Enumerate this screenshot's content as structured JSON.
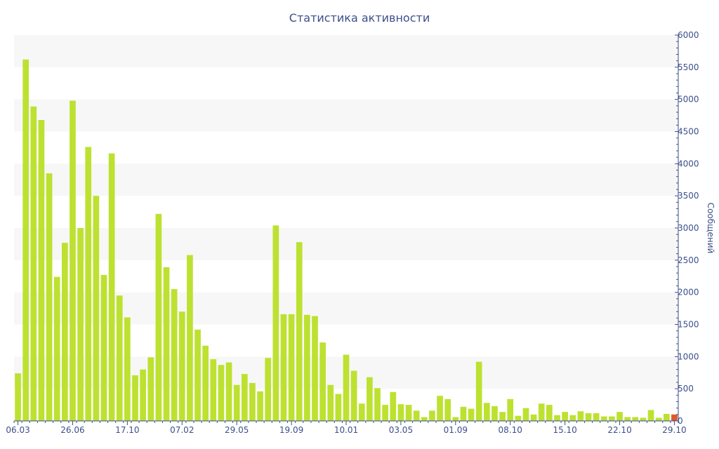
{
  "chart_data": {
    "type": "bar",
    "title": "Статистика активности",
    "ylabel": "Сообщений",
    "xlabel": "",
    "ylim": [
      0,
      6000
    ],
    "y_ticks": [
      0,
      500,
      1000,
      1500,
      2000,
      2500,
      3000,
      3500,
      4000,
      4500,
      5000,
      5500,
      6000
    ],
    "y_axis_side": "right",
    "grid": "alternating horizontal bands",
    "x_tick_labels": [
      {
        "index": 0,
        "label": "06.03"
      },
      {
        "index": 7,
        "label": "26.06"
      },
      {
        "index": 14,
        "label": "17.10"
      },
      {
        "index": 21,
        "label": "07.02"
      },
      {
        "index": 28,
        "label": "29.05"
      },
      {
        "index": 35,
        "label": "19.09"
      },
      {
        "index": 42,
        "label": "10.01"
      },
      {
        "index": 49,
        "label": "03.05"
      },
      {
        "index": 56,
        "label": "01.09"
      },
      {
        "index": 63,
        "label": "08.10"
      },
      {
        "index": 70,
        "label": "15.10"
      },
      {
        "index": 77,
        "label": "22.10"
      },
      {
        "index": 84,
        "label": "29.10"
      }
    ],
    "values": [
      740,
      5620,
      4890,
      4680,
      3850,
      2240,
      2770,
      4980,
      3000,
      4260,
      3500,
      2270,
      4160,
      1950,
      1610,
      710,
      800,
      990,
      3220,
      2390,
      2050,
      1700,
      2580,
      1420,
      1170,
      960,
      870,
      910,
      560,
      730,
      590,
      460,
      980,
      3040,
      1660,
      1660,
      2780,
      1650,
      1630,
      1220,
      560,
      420,
      1030,
      780,
      270,
      680,
      510,
      250,
      450,
      260,
      250,
      160,
      60,
      160,
      390,
      340,
      60,
      220,
      190,
      920,
      280,
      230,
      140,
      340,
      80,
      200,
      100,
      270,
      250,
      90,
      140,
      90,
      150,
      120,
      120,
      70,
      70,
      140,
      60,
      60,
      50,
      170,
      50,
      110,
      100
    ],
    "colors": {
      "bar": "#bde130",
      "last_bar": "#e0592a",
      "band": "#f7f7f7",
      "axis": "#3c4f8a"
    }
  }
}
